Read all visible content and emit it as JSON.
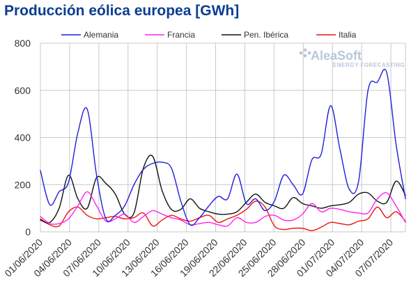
{
  "chart_data": {
    "type": "line",
    "title": "Producción eólica europea [GWh]",
    "xlabel": "",
    "ylabel": "",
    "ylim": [
      0,
      800
    ],
    "yticks": [
      0,
      200,
      400,
      600,
      800
    ],
    "x_tick_labels": [
      "01/06/2020",
      "04/06/2020",
      "07/06/2020",
      "10/06/2020",
      "13/06/2020",
      "16/06/2020",
      "19/06/2020",
      "22/06/2020",
      "25/06/2020",
      "28/06/2020",
      "01/07/2020",
      "04/07/2020",
      "07/07/2020"
    ],
    "grid": true,
    "legend_position": "top",
    "watermark": {
      "main": "AleaSoft",
      "sub": "ENERGY FORECASTING"
    },
    "series": [
      {
        "name": "Alemania",
        "color": "#1f1fdc",
        "values": [
          260,
          115,
          170,
          210,
          420,
          520,
          240,
          55,
          70,
          110,
          200,
          265,
          290,
          295,
          270,
          130,
          30,
          60,
          110,
          150,
          140,
          245,
          120,
          140,
          90,
          130,
          240,
          200,
          160,
          305,
          330,
          535,
          350,
          180,
          215,
          600,
          635,
          675,
          370,
          140
        ]
      },
      {
        "name": "Francia",
        "color": "#ff22ee",
        "values": [
          65,
          35,
          35,
          55,
          110,
          170,
          110,
          45,
          55,
          75,
          40,
          65,
          90,
          75,
          60,
          50,
          30,
          35,
          40,
          30,
          25,
          60,
          40,
          40,
          65,
          70,
          50,
          50,
          75,
          120,
          85,
          100,
          95,
          85,
          80,
          80,
          140,
          165,
          110,
          40
        ]
      },
      {
        "name": "Pen. Ibérica",
        "color": "#111111",
        "values": [
          50,
          40,
          100,
          240,
          140,
          100,
          230,
          205,
          160,
          75,
          80,
          270,
          320,
          175,
          95,
          95,
          140,
          100,
          85,
          75,
          75,
          85,
          125,
          160,
          125,
          110,
          100,
          145,
          120,
          110,
          100,
          110,
          115,
          125,
          160,
          165,
          130,
          125,
          215,
          155
        ]
      },
      {
        "name": "Italia",
        "color": "#ee1111",
        "values": [
          55,
          30,
          25,
          85,
          105,
          70,
          55,
          60,
          65,
          55,
          60,
          80,
          25,
          50,
          70,
          55,
          45,
          60,
          70,
          40,
          55,
          70,
          95,
          130,
          105,
          25,
          10,
          15,
          15,
          5,
          20,
          40,
          35,
          30,
          45,
          55,
          105,
          60,
          85,
          45
        ]
      }
    ]
  }
}
